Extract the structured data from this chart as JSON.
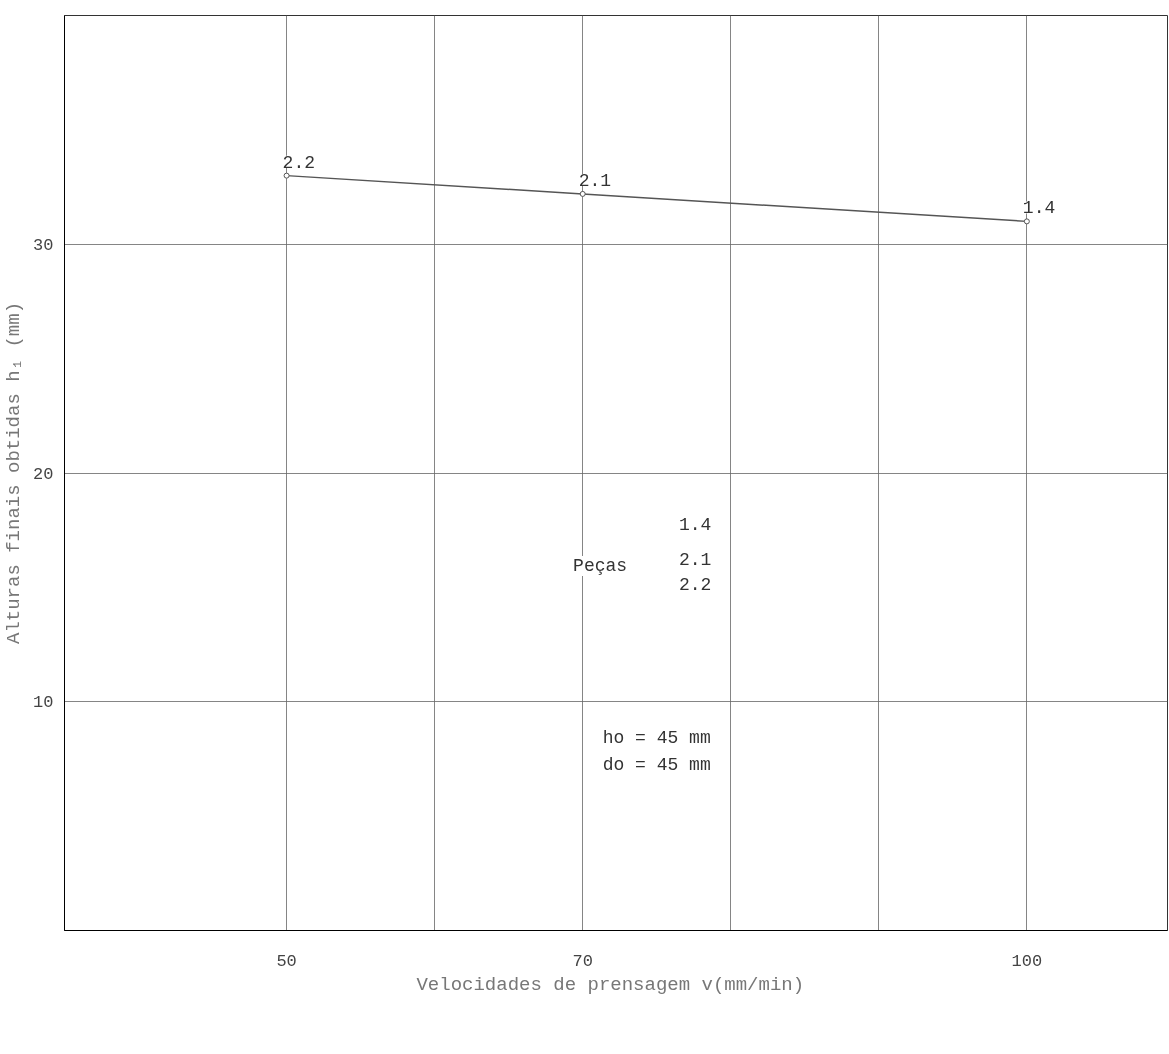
{
  "chart_data": {
    "type": "line",
    "xlabel": "Velocidades de prensagem  v(mm/min)",
    "ylabel": "Alturas finais obtidas h₁ (mm)",
    "x": [
      50,
      70,
      100
    ],
    "series": [
      {
        "color": "#555555",
        "values": [
          33.0,
          32.2,
          31.0
        ]
      }
    ],
    "xlim": [
      35,
      109.5
    ],
    "ylim": [
      0,
      40
    ],
    "xticks": [
      50,
      {
        "value": 60,
        "label": null
      },
      70,
      {
        "value": 80,
        "label": null
      },
      {
        "value": 90,
        "label": null
      },
      100
    ],
    "yticks": [
      10,
      20,
      30
    ],
    "grid": true,
    "marker": "circle",
    "line_style": "solid",
    "annotations": [
      {
        "text": "2.2",
        "x": 50,
        "y": 33.0
      },
      {
        "text": "2.1",
        "x": 70,
        "y": 32.2
      },
      {
        "text": "1.4",
        "x": 100,
        "y": 31.0
      },
      "Peças",
      "1.4",
      "2.1",
      "2.2",
      "ho = 45 mm",
      "do = 45 mm"
    ]
  }
}
